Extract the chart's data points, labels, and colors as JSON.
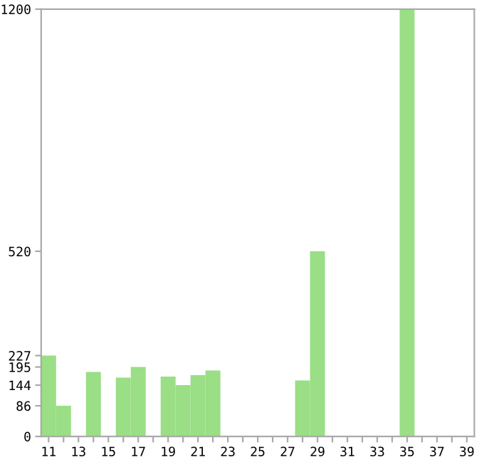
{
  "chart_data": {
    "type": "bar",
    "categories": [
      "11",
      null,
      "13",
      null,
      "15",
      null,
      "17",
      null,
      "19",
      null,
      "21",
      null,
      "23",
      null,
      "25",
      null,
      "27",
      null,
      "29",
      null,
      "31",
      null,
      "33",
      null,
      "35",
      null,
      "37",
      null,
      "39"
    ],
    "values": [
      227,
      86,
      0,
      181,
      0,
      165,
      195,
      0,
      168,
      144,
      172,
      185,
      0,
      0,
      0,
      0,
      0,
      157,
      520,
      0,
      0,
      0,
      0,
      0,
      1200,
      0,
      0,
      0,
      0
    ],
    "color": "#9ade85",
    "ylim": [
      0,
      1200
    ],
    "yticks": [
      0,
      86,
      144,
      195,
      227,
      520,
      1200
    ],
    "grid": false
  }
}
